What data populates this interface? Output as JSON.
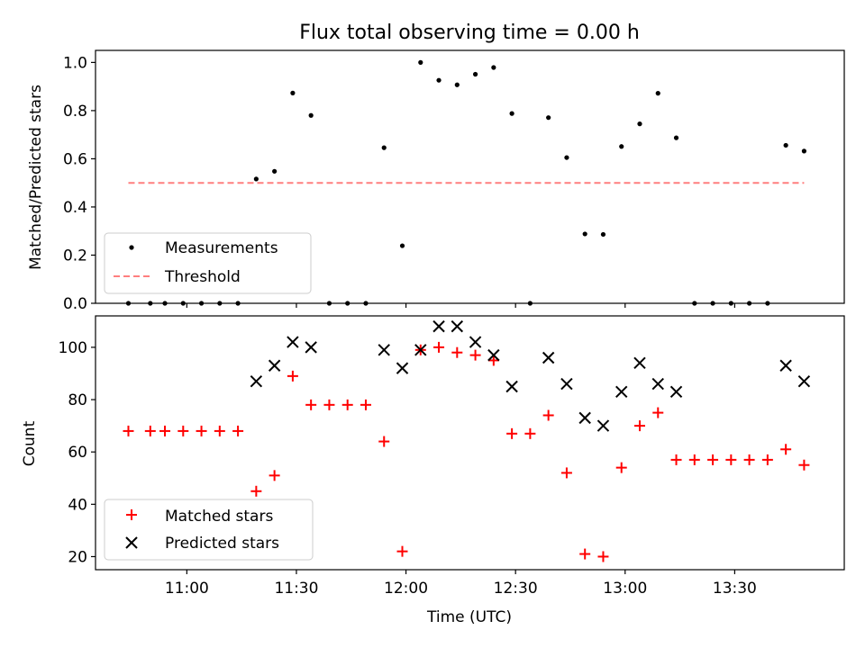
{
  "chart_data": [
    {
      "type": "scatter",
      "title": "Flux total observing time = 0.00 h",
      "xlabel": "",
      "ylabel": "Matched/Predicted stars",
      "xlim": [
        "10:35",
        "14:00"
      ],
      "ylim": [
        0,
        1.05
      ],
      "yticks": [
        "0.0",
        "0.2",
        "0.4",
        "0.6",
        "0.8",
        "1.0"
      ],
      "legend_position": "lower-left",
      "series": [
        {
          "name": "Measurements",
          "marker": "dot",
          "color": "#000000",
          "points": [
            [
              "10:44",
              0.0
            ],
            [
              "10:50",
              0.0
            ],
            [
              "10:54",
              0.0
            ],
            [
              "10:59",
              0.0
            ],
            [
              "11:04",
              0.0
            ],
            [
              "11:09",
              0.0
            ],
            [
              "11:14",
              0.0
            ],
            [
              "11:19",
              0.516
            ],
            [
              "11:24",
              0.548
            ],
            [
              "11:29",
              0.873
            ],
            [
              "11:34",
              0.78
            ],
            [
              "11:39",
              0.0
            ],
            [
              "11:44",
              0.0
            ],
            [
              "11:49",
              0.0
            ],
            [
              "11:54",
              0.646
            ],
            [
              "11:59",
              0.239
            ],
            [
              "12:04",
              1.0
            ],
            [
              "12:09",
              0.926
            ],
            [
              "12:14",
              0.907
            ],
            [
              "12:19",
              0.951
            ],
            [
              "12:24",
              0.979
            ],
            [
              "12:29",
              0.788
            ],
            [
              "12:34",
              0.0
            ],
            [
              "12:39",
              0.771
            ],
            [
              "12:44",
              0.605
            ],
            [
              "12:49",
              0.288
            ],
            [
              "12:54",
              0.286
            ],
            [
              "12:59",
              0.651
            ],
            [
              "13:04",
              0.745
            ],
            [
              "13:09",
              0.872
            ],
            [
              "13:14",
              0.687
            ],
            [
              "13:19",
              0.0
            ],
            [
              "13:24",
              0.0
            ],
            [
              "13:29",
              0.0
            ],
            [
              "13:34",
              0.0
            ],
            [
              "13:39",
              0.0
            ],
            [
              "13:44",
              0.656
            ],
            [
              "13:49",
              0.632
            ]
          ]
        },
        {
          "name": "Threshold",
          "marker": "dashed-line",
          "color": "#ff7f7f",
          "points": [
            [
              "10:44",
              0.5
            ],
            [
              "13:49",
              0.5
            ]
          ]
        }
      ]
    },
    {
      "type": "scatter",
      "title": "",
      "xlabel": "Time (UTC)",
      "ylabel": "Count",
      "xlim": [
        "10:35",
        "14:00"
      ],
      "ylim": [
        15,
        112
      ],
      "yticks": [
        "20",
        "40",
        "60",
        "80",
        "100"
      ],
      "xticks": [
        "11:00",
        "11:30",
        "12:00",
        "12:30",
        "13:00",
        "13:30"
      ],
      "legend_position": "lower-left",
      "series": [
        {
          "name": "Matched stars",
          "marker": "plus",
          "color": "#ff0000",
          "points": [
            [
              "10:44",
              68
            ],
            [
              "10:50",
              68
            ],
            [
              "10:54",
              68
            ],
            [
              "10:59",
              68
            ],
            [
              "11:04",
              68
            ],
            [
              "11:09",
              68
            ],
            [
              "11:14",
              68
            ],
            [
              "11:19",
              45
            ],
            [
              "11:24",
              51
            ],
            [
              "11:29",
              89
            ],
            [
              "11:34",
              78
            ],
            [
              "11:39",
              78
            ],
            [
              "11:44",
              78
            ],
            [
              "11:49",
              78
            ],
            [
              "11:54",
              64
            ],
            [
              "11:59",
              22
            ],
            [
              "12:04",
              99
            ],
            [
              "12:09",
              100
            ],
            [
              "12:14",
              98
            ],
            [
              "12:19",
              97
            ],
            [
              "12:24",
              95
            ],
            [
              "12:29",
              67
            ],
            [
              "12:34",
              67
            ],
            [
              "12:39",
              74
            ],
            [
              "12:44",
              52
            ],
            [
              "12:49",
              21
            ],
            [
              "12:54",
              20
            ],
            [
              "12:59",
              54
            ],
            [
              "13:04",
              70
            ],
            [
              "13:09",
              75
            ],
            [
              "13:14",
              57
            ],
            [
              "13:19",
              57
            ],
            [
              "13:24",
              57
            ],
            [
              "13:29",
              57
            ],
            [
              "13:34",
              57
            ],
            [
              "13:39",
              57
            ],
            [
              "13:44",
              61
            ],
            [
              "13:49",
              55
            ]
          ]
        },
        {
          "name": "Predicted stars",
          "marker": "x",
          "color": "#000000",
          "points": [
            [
              "11:19",
              87
            ],
            [
              "11:24",
              93
            ],
            [
              "11:29",
              102
            ],
            [
              "11:34",
              100
            ],
            [
              "11:54",
              99
            ],
            [
              "11:59",
              92
            ],
            [
              "12:04",
              99
            ],
            [
              "12:09",
              108
            ],
            [
              "12:14",
              108
            ],
            [
              "12:19",
              102
            ],
            [
              "12:24",
              97
            ],
            [
              "12:29",
              85
            ],
            [
              "12:39",
              96
            ],
            [
              "12:44",
              86
            ],
            [
              "12:49",
              73
            ],
            [
              "12:54",
              70
            ],
            [
              "12:59",
              83
            ],
            [
              "13:04",
              94
            ],
            [
              "13:09",
              86
            ],
            [
              "13:14",
              83
            ],
            [
              "13:44",
              93
            ],
            [
              "13:49",
              87
            ]
          ]
        }
      ]
    }
  ]
}
